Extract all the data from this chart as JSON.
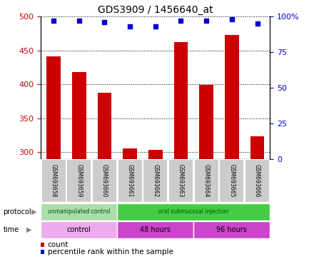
{
  "title": "GDS3909 / 1456640_at",
  "samples": [
    "GSM693658",
    "GSM693659",
    "GSM693660",
    "GSM693661",
    "GSM693662",
    "GSM693663",
    "GSM693664",
    "GSM693665",
    "GSM693666"
  ],
  "count_values": [
    441,
    418,
    388,
    305,
    303,
    462,
    399,
    473,
    323
  ],
  "percentile_values": [
    97,
    97,
    96,
    93,
    93,
    97,
    97,
    98,
    95
  ],
  "ylim_left": [
    290,
    500
  ],
  "ylim_right": [
    0,
    100
  ],
  "yticks_left": [
    300,
    350,
    400,
    450,
    500
  ],
  "yticks_right": [
    0,
    25,
    50,
    75,
    100
  ],
  "ytick_labels_right": [
    "0",
    "25",
    "50",
    "75",
    "100%"
  ],
  "bar_color": "#cc0000",
  "scatter_color": "#0000cc",
  "bar_width": 0.55,
  "protocol_groups": [
    {
      "label": "unmanipulated control",
      "start": 0,
      "end": 3,
      "color": "#aaddaa"
    },
    {
      "label": "oral submucosal injection",
      "start": 3,
      "end": 9,
      "color": "#44cc44"
    }
  ],
  "time_groups": [
    {
      "label": "control",
      "start": 0,
      "end": 3,
      "color": "#eeaaee"
    },
    {
      "label": "48 hours",
      "start": 3,
      "end": 6,
      "color": "#dd44dd"
    },
    {
      "label": "96 hours",
      "start": 6,
      "end": 9,
      "color": "#dd44dd"
    }
  ],
  "grid_color": "#000000",
  "tick_label_color_left": "#cc0000",
  "tick_label_color_right": "#0000cc",
  "box_color": "#cccccc",
  "box_edge_color": "#ffffff"
}
